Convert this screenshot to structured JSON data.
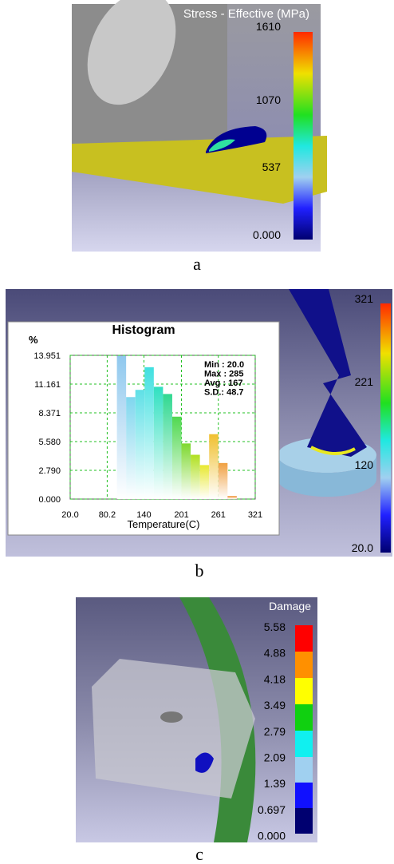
{
  "panel_a": {
    "title": "Stress - Effective (MPa)",
    "scale_labels": [
      "1610",
      "1070",
      "537",
      "0.000"
    ],
    "caption": "a"
  },
  "chart_data": {
    "type": "histogram",
    "title": "Histogram",
    "y_label": "%",
    "x_label": "Temperature(C)",
    "bins": [
      96,
      111,
      126,
      141,
      156,
      171,
      186,
      201,
      216,
      231,
      246,
      261,
      276,
      291
    ],
    "values": [
      13.9,
      9.9,
      10.6,
      12.8,
      10.9,
      10.2,
      8.0,
      5.4,
      4.3,
      3.3,
      6.3,
      3.5,
      0.3
    ],
    "colors": [
      "#8fc8ee",
      "#7fd6ee",
      "#5fe0e6",
      "#40e0e0",
      "#30e0c0",
      "#30d890",
      "#50d850",
      "#7ed830",
      "#b0e020",
      "#e8e830",
      "#f0c030",
      "#f0a040",
      "#f09030"
    ],
    "xlim": [
      20,
      321
    ],
    "ylim": [
      0,
      13.951
    ],
    "xticks": [
      {
        "value": 20,
        "label": "20.0"
      },
      80.2,
      140,
      201,
      261,
      321
    ],
    "yticks": [
      {
        "value": 0,
        "label": "0.000"
      },
      {
        "value": 2.79,
        "label": "2.790"
      },
      {
        "value": 5.58,
        "label": "5.580"
      },
      8.371,
      11.161,
      13.951
    ],
    "grid": true,
    "stats": [
      "Min : 20.0",
      "Max : 285",
      "Avg : 167",
      "S.D.: 48.7"
    ]
  },
  "panel_b": {
    "scale_labels": [
      "321",
      "221",
      "120",
      "20.0"
    ],
    "caption": "b"
  },
  "panel_c": {
    "title": "Damage",
    "scale_labels": [
      "5.58",
      "4.88",
      "4.18",
      "3.49",
      "2.79",
      "2.09",
      "1.39",
      "0.697",
      "0.000"
    ],
    "caption": "c"
  }
}
